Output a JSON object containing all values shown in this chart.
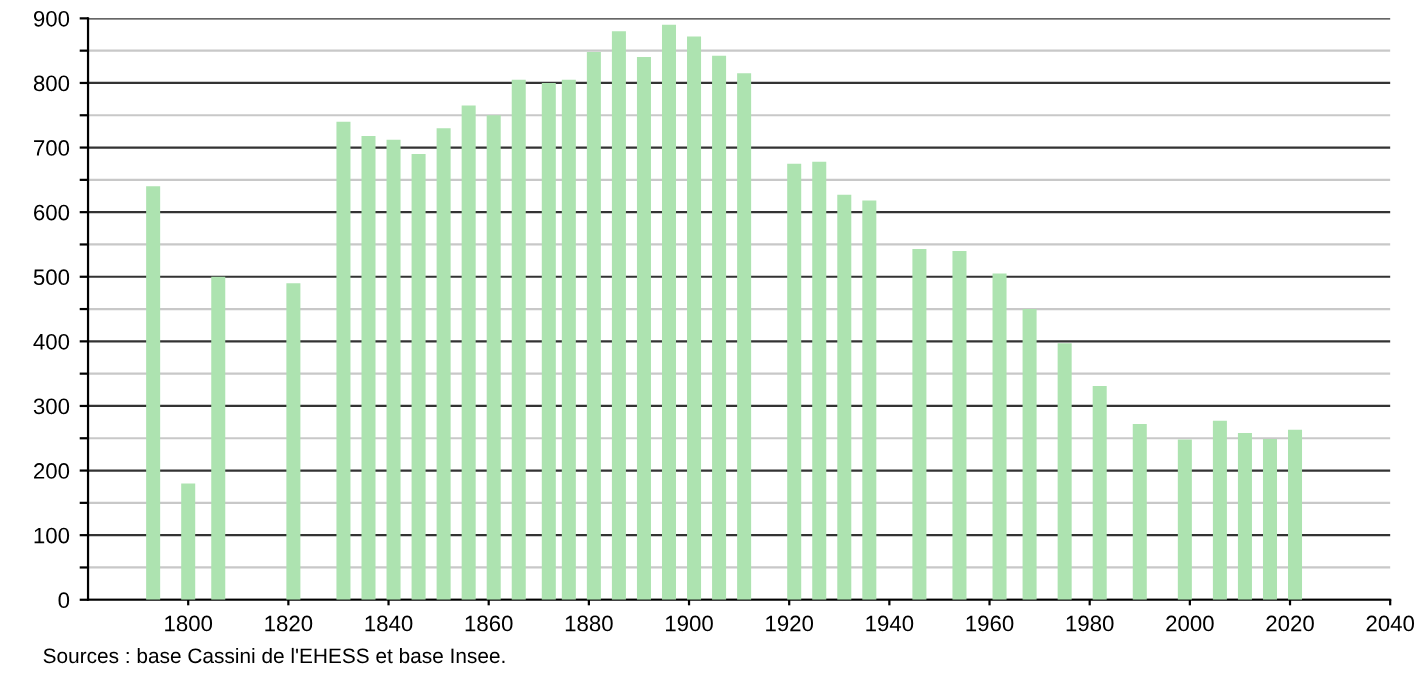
{
  "chart_data": {
    "type": "bar",
    "x": [
      1793,
      1800,
      1806,
      1821,
      1831,
      1836,
      1841,
      1846,
      1851,
      1856,
      1861,
      1866,
      1872,
      1876,
      1881,
      1886,
      1891,
      1896,
      1901,
      1906,
      1911,
      1921,
      1926,
      1931,
      1936,
      1946,
      1954,
      1962,
      1968,
      1975,
      1982,
      1990,
      1999,
      2006,
      2011,
      2016,
      2021
    ],
    "values": [
      640,
      180,
      500,
      490,
      740,
      718,
      712,
      690,
      730,
      765,
      750,
      805,
      800,
      805,
      848,
      880,
      840,
      890,
      872,
      842,
      815,
      675,
      678,
      627,
      618,
      543,
      540,
      505,
      450,
      397,
      331,
      272,
      248,
      277,
      258,
      249,
      263
    ],
    "color": "#ade3b0",
    "xlim": [
      1780,
      2040
    ],
    "xticks": [
      1800,
      1820,
      1840,
      1860,
      1880,
      1900,
      1920,
      1940,
      1960,
      1980,
      2000,
      2020,
      2040
    ],
    "ylim": [
      0,
      900
    ],
    "yticks": [
      0,
      {
        "value": 50,
        "label": null
      },
      100,
      {
        "value": 150,
        "label": null
      },
      200,
      {
        "value": 250,
        "label": null
      },
      300,
      {
        "value": 350,
        "label": null
      },
      400,
      {
        "value": 450,
        "label": null
      },
      500,
      {
        "value": 550,
        "label": null
      },
      600,
      {
        "value": 650,
        "label": null
      },
      700,
      {
        "value": 750,
        "label": null
      },
      800,
      {
        "value": 850,
        "label": null
      },
      900
    ],
    "grid": "y",
    "annotations": [
      "Sources : base Cassini de l'EHESS et base Insee."
    ]
  }
}
